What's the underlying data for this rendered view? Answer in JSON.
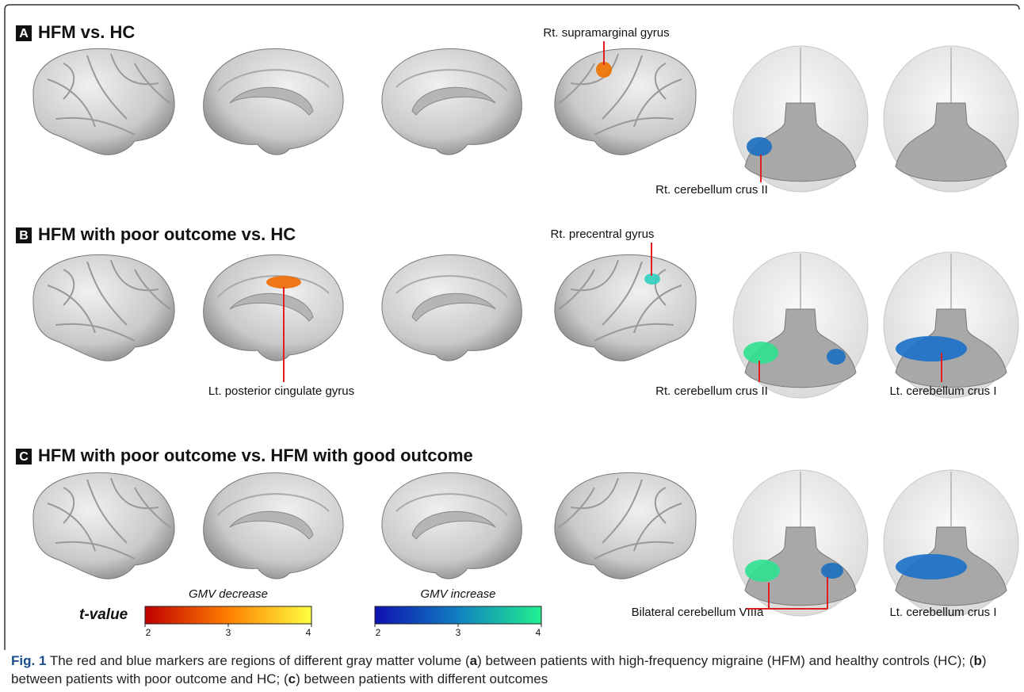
{
  "panels": [
    {
      "letter": "A",
      "title": "HFM vs. HC",
      "annotations": [
        "Rt. supramarginal gyrus",
        "Rt. cerebellum crus II"
      ]
    },
    {
      "letter": "B",
      "title": "HFM with poor outcome vs. HC",
      "annotations": [
        "Rt. precentral gyrus",
        "Lt. posterior cingulate gyrus",
        "Rt. cerebellum crus II",
        "Lt. cerebellum crus I"
      ]
    },
    {
      "letter": "C",
      "title": "HFM with poor outcome vs. HFM with good outcome",
      "annotations": [
        "Bilateral cerebellum VIIIa",
        "Lt. cerebellum crus I"
      ]
    }
  ],
  "legend": {
    "label": "t-value",
    "colorbars": [
      {
        "title": "GMV decrease",
        "lim": [
          2,
          4
        ],
        "ticks": [
          2,
          3,
          4
        ],
        "colors": [
          "#c00000",
          "#ff7f00",
          "#ffff40"
        ]
      },
      {
        "title": "GMV increase",
        "lim": [
          2,
          4
        ],
        "ticks": [
          2,
          3,
          4
        ],
        "colors": [
          "#1010b0",
          "#1080c0",
          "#20f090"
        ]
      }
    ]
  },
  "caption": {
    "label": "Fig. 1",
    "segments": [
      "The red and blue markers are regions of different gray matter volume (",
      "a",
      ") between patients with high-frequency migraine (HFM) and healthy controls (HC); (",
      "b",
      ") between patients with poor outcome and HC; (",
      "c",
      ") between patients with different outcomes"
    ]
  }
}
